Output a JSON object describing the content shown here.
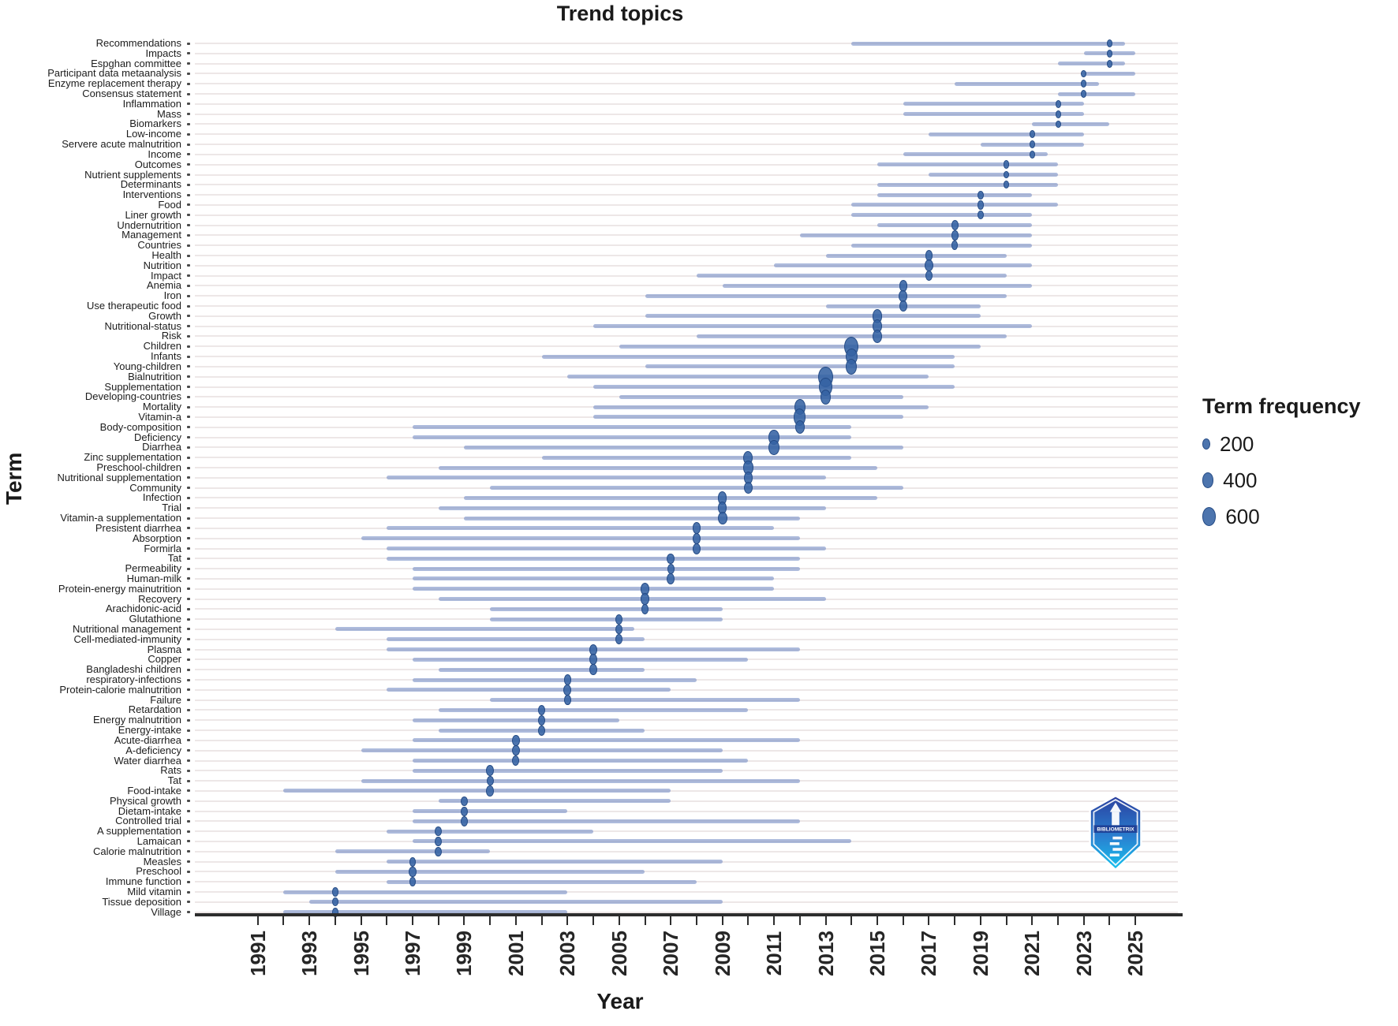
{
  "title": "Trend topics",
  "x_axis": {
    "label": "Year",
    "year_min": 1991,
    "year_max": 2025,
    "labeled_tick_years": [
      1991,
      1993,
      1995,
      1997,
      1999,
      2001,
      2003,
      2005,
      2007,
      2009,
      2011,
      2013,
      2015,
      2017,
      2019,
      2021,
      2023,
      2025
    ]
  },
  "y_axis": {
    "label": "Term"
  },
  "legend": {
    "title": "Term frequency",
    "sizes": [
      200,
      400,
      600
    ]
  },
  "logo": {
    "name": "bibliometrix-badge",
    "text": "BIBLIOMETRIX"
  },
  "colors": {
    "range_line": "rgba(122,146,199,0.62)",
    "dot_fill": "rgba(52,98,163,0.88)",
    "dot_stroke": "rgba(36,74,132,0.95)",
    "grid": "#ede7e7",
    "axis": "#2d2d2d",
    "logo_top": "#2b3f9e",
    "logo_bottom": "#17c2ee"
  },
  "chart_data": {
    "type": "scatter",
    "description": "Trend topics bubble-timeline: per term a line spans first-to-last year quartiles, dot at median year, dot size = term frequency",
    "title": "Trend topics",
    "xlabel": "Year",
    "ylabel": "Term",
    "xlim": [
      1990,
      2026
    ],
    "legend_position": "right",
    "terms": [
      {
        "term": "Recommendations",
        "start": 2014,
        "peak": 2024,
        "end": 2024.6,
        "freq": 60
      },
      {
        "term": "Impacts",
        "start": 2023,
        "peak": 2024,
        "end": 2025,
        "freq": 50
      },
      {
        "term": "Espghan committee",
        "start": 2022,
        "peak": 2024,
        "end": 2024.6,
        "freq": 55
      },
      {
        "term": "Participant data metaanalysis",
        "start": 2023,
        "peak": 2023,
        "end": 2025,
        "freq": 45
      },
      {
        "term": "Enzyme replacement therapy",
        "start": 2018,
        "peak": 2023,
        "end": 2023.6,
        "freq": 55
      },
      {
        "term": "Consensus statement",
        "start": 2022,
        "peak": 2023,
        "end": 2025,
        "freq": 50
      },
      {
        "term": "Inflammation",
        "start": 2016,
        "peak": 2022,
        "end": 2023,
        "freq": 85
      },
      {
        "term": "Mass",
        "start": 2016,
        "peak": 2022,
        "end": 2023,
        "freq": 75
      },
      {
        "term": "Biomarkers",
        "start": 2021,
        "peak": 2022,
        "end": 2024,
        "freq": 70
      },
      {
        "term": "Low-income",
        "start": 2017,
        "peak": 2021,
        "end": 2023,
        "freq": 90
      },
      {
        "term": "Servere acute malnutrition",
        "start": 2019,
        "peak": 2021,
        "end": 2023,
        "freq": 110
      },
      {
        "term": "Income",
        "start": 2016,
        "peak": 2021,
        "end": 2021.6,
        "freq": 85
      },
      {
        "term": "Outcomes",
        "start": 2015,
        "peak": 2020,
        "end": 2022,
        "freq": 115
      },
      {
        "term": "Nutrient supplements",
        "start": 2017,
        "peak": 2020,
        "end": 2022,
        "freq": 100
      },
      {
        "term": "Determinants",
        "start": 2015,
        "peak": 2020,
        "end": 2022,
        "freq": 105
      },
      {
        "term": "Interventions",
        "start": 2015,
        "peak": 2019,
        "end": 2021,
        "freq": 130
      },
      {
        "term": "Food",
        "start": 2014,
        "peak": 2019,
        "end": 2022,
        "freq": 145
      },
      {
        "term": "Liner growth",
        "start": 2014,
        "peak": 2019,
        "end": 2021,
        "freq": 125
      },
      {
        "term": "Undernutrition",
        "start": 2015,
        "peak": 2018,
        "end": 2021,
        "freq": 165
      },
      {
        "term": "Management",
        "start": 2012,
        "peak": 2018,
        "end": 2021,
        "freq": 155
      },
      {
        "term": "Countries",
        "start": 2014,
        "peak": 2018,
        "end": 2021,
        "freq": 145
      },
      {
        "term": "Health",
        "start": 2013,
        "peak": 2017,
        "end": 2020,
        "freq": 185
      },
      {
        "term": "Nutrition",
        "start": 2011,
        "peak": 2017,
        "end": 2021,
        "freq": 230
      },
      {
        "term": "Impact",
        "start": 2008,
        "peak": 2017,
        "end": 2020,
        "freq": 175
      },
      {
        "term": "Anemia",
        "start": 2009,
        "peak": 2016,
        "end": 2021,
        "freq": 210
      },
      {
        "term": "Iron",
        "start": 2006,
        "peak": 2016,
        "end": 2020,
        "freq": 240
      },
      {
        "term": "Use therapeutic food",
        "start": 2013,
        "peak": 2016,
        "end": 2019,
        "freq": 185
      },
      {
        "term": "Growth",
        "start": 2006,
        "peak": 2015,
        "end": 2019,
        "freq": 330
      },
      {
        "term": "Nutritional-status",
        "start": 2004,
        "peak": 2015,
        "end": 2021,
        "freq": 310
      },
      {
        "term": "Risk",
        "start": 2008,
        "peak": 2015,
        "end": 2020,
        "freq": 290
      },
      {
        "term": "Children",
        "start": 2005,
        "peak": 2014,
        "end": 2019,
        "freq": 660
      },
      {
        "term": "Infants",
        "start": 2002,
        "peak": 2014,
        "end": 2018,
        "freq": 430
      },
      {
        "term": "Young-children",
        "start": 2006,
        "peak": 2014,
        "end": 2018,
        "freq": 390
      },
      {
        "term": "Bialnutrition",
        "start": 2003,
        "peak": 2013,
        "end": 2017,
        "freq": 700
      },
      {
        "term": "Supplementation",
        "start": 2004,
        "peak": 2013,
        "end": 2018,
        "freq": 530
      },
      {
        "term": "Developing-countries",
        "start": 2005,
        "peak": 2013,
        "end": 2016,
        "freq": 360
      },
      {
        "term": "Mortality",
        "start": 2004,
        "peak": 2012,
        "end": 2017,
        "freq": 410
      },
      {
        "term": "Vitamin-a",
        "start": 2004,
        "peak": 2012,
        "end": 2016,
        "freq": 460
      },
      {
        "term": "Body-composition",
        "start": 1997,
        "peak": 2012,
        "end": 2014,
        "freq": 310
      },
      {
        "term": "Deficiency",
        "start": 1997,
        "peak": 2011,
        "end": 2014,
        "freq": 360
      },
      {
        "term": "Diarrhea",
        "start": 1999,
        "peak": 2011,
        "end": 2016,
        "freq": 390
      },
      {
        "term": "Zinc supplementation",
        "start": 2002,
        "peak": 2010,
        "end": 2014,
        "freq": 290
      },
      {
        "term": "Preschool-children",
        "start": 1998,
        "peak": 2010,
        "end": 2015,
        "freq": 310
      },
      {
        "term": "Nutritional supplementation",
        "start": 1996,
        "peak": 2010,
        "end": 2013,
        "freq": 260
      },
      {
        "term": "Community",
        "start": 2000,
        "peak": 2010,
        "end": 2016,
        "freq": 250
      },
      {
        "term": "Infection",
        "start": 1999,
        "peak": 2009,
        "end": 2015,
        "freq": 270
      },
      {
        "term": "Trial",
        "start": 1998,
        "peak": 2009,
        "end": 2013,
        "freq": 250
      },
      {
        "term": "Vitamin-a supplementation",
        "start": 1999,
        "peak": 2009,
        "end": 2012,
        "freq": 290
      },
      {
        "term": "Presistent diarrhea",
        "start": 1996,
        "peak": 2008,
        "end": 2011,
        "freq": 230
      },
      {
        "term": "Absorption",
        "start": 1995,
        "peak": 2008,
        "end": 2012,
        "freq": 210
      },
      {
        "term": "Formirla",
        "start": 1996,
        "peak": 2008,
        "end": 2013,
        "freq": 200
      },
      {
        "term": "Tat",
        "start": 1996,
        "peak": 2007,
        "end": 2012,
        "freq": 185
      },
      {
        "term": "Permeability",
        "start": 1997,
        "peak": 2007,
        "end": 2012,
        "freq": 175
      },
      {
        "term": "Human-milk",
        "start": 1997,
        "peak": 2007,
        "end": 2011,
        "freq": 195
      },
      {
        "term": "Protein-energy mainutrition",
        "start": 1997,
        "peak": 2006,
        "end": 2011,
        "freq": 265
      },
      {
        "term": "Recovery",
        "start": 1998,
        "peak": 2006,
        "end": 2013,
        "freq": 225
      },
      {
        "term": "Arachidonic-acid",
        "start": 2000,
        "peak": 2006,
        "end": 2009,
        "freq": 185
      },
      {
        "term": "Glutathione",
        "start": 2000,
        "peak": 2005,
        "end": 2009,
        "freq": 165
      },
      {
        "term": "Nutritional management",
        "start": 1994,
        "peak": 2005,
        "end": 2005.6,
        "freq": 155
      },
      {
        "term": "Cell-mediated-immunity",
        "start": 1996,
        "peak": 2005,
        "end": 2006,
        "freq": 175
      },
      {
        "term": "Plasma",
        "start": 1996,
        "peak": 2004,
        "end": 2012,
        "freq": 205
      },
      {
        "term": "Copper",
        "start": 1997,
        "peak": 2004,
        "end": 2010,
        "freq": 195
      },
      {
        "term": "Bangladeshi children",
        "start": 1998,
        "peak": 2004,
        "end": 2006,
        "freq": 185
      },
      {
        "term": "respiratory-infections",
        "start": 1997,
        "peak": 2003,
        "end": 2008,
        "freq": 175
      },
      {
        "term": "Protein-calorie malnutrition",
        "start": 1996,
        "peak": 2003,
        "end": 2007,
        "freq": 205
      },
      {
        "term": "Failure",
        "start": 2000,
        "peak": 2003,
        "end": 2012,
        "freq": 155
      },
      {
        "term": "Retardation",
        "start": 1998,
        "peak": 2002,
        "end": 2010,
        "freq": 185
      },
      {
        "term": "Energy malnutrition",
        "start": 1997,
        "peak": 2002,
        "end": 2005,
        "freq": 165
      },
      {
        "term": "Energy-intake",
        "start": 1998,
        "peak": 2002,
        "end": 2006,
        "freq": 175
      },
      {
        "term": "Acute-diarrhea",
        "start": 1997,
        "peak": 2001,
        "end": 2012,
        "freq": 185
      },
      {
        "term": "A-deficiency",
        "start": 1995,
        "peak": 2001,
        "end": 2009,
        "freq": 175
      },
      {
        "term": "Water diarrhea",
        "start": 1997,
        "peak": 2001,
        "end": 2010,
        "freq": 165
      },
      {
        "term": "Rats",
        "start": 1997,
        "peak": 2000,
        "end": 2009,
        "freq": 195
      },
      {
        "term": "Tat",
        "start": 1995,
        "peak": 2000,
        "end": 2012,
        "freq": 155
      },
      {
        "term": "Food-intake",
        "start": 1992,
        "peak": 2000,
        "end": 2007,
        "freq": 185
      },
      {
        "term": "Physical growth",
        "start": 1998,
        "peak": 1999,
        "end": 2007,
        "freq": 155
      },
      {
        "term": "Dietam-intake",
        "start": 1997,
        "peak": 1999,
        "end": 2003,
        "freq": 145
      },
      {
        "term": "Controlled trial",
        "start": 1997,
        "peak": 1999,
        "end": 2012,
        "freq": 165
      },
      {
        "term": "A supplementation",
        "start": 1996,
        "peak": 1998,
        "end": 2004,
        "freq": 155
      },
      {
        "term": "Lamaican",
        "start": 1997,
        "peak": 1998,
        "end": 2014,
        "freq": 145
      },
      {
        "term": "Calorie malnutrition",
        "start": 1994,
        "peak": 1998,
        "end": 2000,
        "freq": 155
      },
      {
        "term": "Measles",
        "start": 1996,
        "peak": 1997,
        "end": 2009,
        "freq": 145
      },
      {
        "term": "Preschool",
        "start": 1994,
        "peak": 1997,
        "end": 2006,
        "freq": 165
      },
      {
        "term": "Immune function",
        "start": 1996,
        "peak": 1997,
        "end": 2008,
        "freq": 155
      },
      {
        "term": "Mild vitamin",
        "start": 1992,
        "peak": 1994,
        "end": 2003,
        "freq": 135
      },
      {
        "term": "Tissue deposition",
        "start": 1993,
        "peak": 1994,
        "end": 2009,
        "freq": 125
      },
      {
        "term": "Village",
        "start": 1992,
        "peak": 1994,
        "end": 2003,
        "freq": 145
      }
    ]
  }
}
